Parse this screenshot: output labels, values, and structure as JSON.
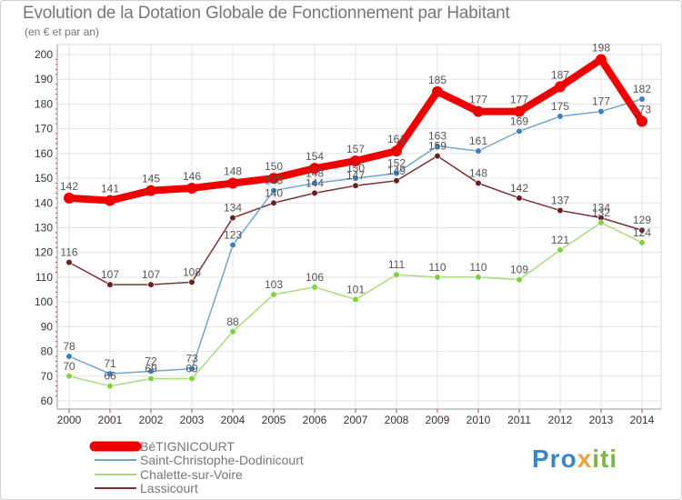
{
  "header": {
    "title": "Evolution de la Dotation Globale de Fonctionnement par Habitant",
    "subtitle": "(en € et par an)"
  },
  "brand": {
    "parts": [
      "Pro",
      "x",
      "iti"
    ],
    "colors": [
      "#3a86c8",
      "#e8a33d",
      "#7ab648"
    ]
  },
  "chart_data": {
    "type": "line",
    "title": "Evolution de la Dotation Globale de Fonctionnement par Habitant",
    "ylabel": "(en € et par an)",
    "xlabel": "",
    "ylim": [
      60,
      200
    ],
    "yticks": [
      60,
      70,
      80,
      90,
      100,
      110,
      120,
      130,
      140,
      150,
      160,
      170,
      180,
      190,
      200
    ],
    "grid": true,
    "legend": "bottom-left",
    "categories": [
      "2000",
      "2001",
      "2002",
      "2003",
      "2004",
      "2005",
      "2006",
      "2007",
      "2008",
      "2009",
      "2010",
      "2011",
      "2012",
      "2013",
      "2014"
    ],
    "series": [
      {
        "name": "BéTIGNICOURT",
        "color": "#ee0000",
        "marker": "#ee0000",
        "emphasis": true,
        "values": [
          142,
          141,
          145,
          146,
          148,
          150,
          154,
          157,
          161,
          185,
          177,
          177,
          187,
          198,
          173
        ],
        "labels": [
          "142",
          "141",
          "145",
          "146",
          "148",
          "150",
          "154",
          "157",
          "161",
          "185",
          "177",
          "177",
          "187",
          "198",
          "173"
        ]
      },
      {
        "name": "Saint-Christophe-Dodinicourt",
        "color": "#6fa5d2",
        "marker": "#3b82c4",
        "values": [
          78,
          71,
          72,
          73,
          123,
          145,
          148,
          150,
          152,
          163,
          161,
          169,
          175,
          177,
          182
        ],
        "labels": [
          "78",
          "71",
          "72",
          "73",
          "123",
          "145",
          "148",
          "150",
          "152",
          "163",
          "161",
          "169",
          "175",
          "177",
          "182"
        ]
      },
      {
        "name": "Chalette-sur-Voire",
        "color": "#a9dc7c",
        "marker": "#7ed23a",
        "values": [
          70,
          66,
          69,
          69,
          88,
          103,
          106,
          101,
          111,
          110,
          110,
          109,
          121,
          132,
          124
        ],
        "labels": [
          "70",
          "66",
          "69",
          "69",
          "88",
          "103",
          "106",
          "101",
          "111",
          "110",
          "110",
          "109",
          "121",
          "132",
          "124"
        ]
      },
      {
        "name": "Lassicourt",
        "color": "#7a3333",
        "marker": "#6b1f1f",
        "values": [
          116,
          107,
          107,
          108,
          134,
          140,
          144,
          147,
          149,
          159,
          148,
          142,
          137,
          134,
          129
        ],
        "labels": [
          "116",
          "107",
          "107",
          "108",
          "134",
          "140",
          "144",
          "147",
          "149",
          "159",
          "148",
          "142",
          "137",
          "134",
          "129"
        ]
      }
    ]
  }
}
